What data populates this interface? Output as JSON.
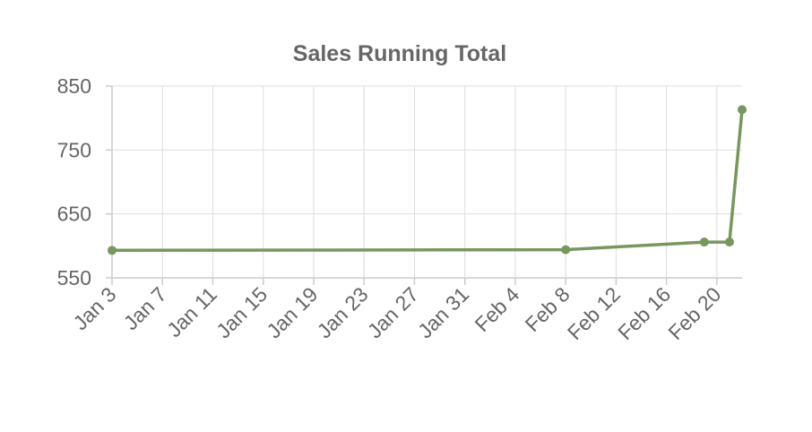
{
  "chart_data": {
    "type": "line",
    "title": "Sales Running Total",
    "xlabel": "",
    "ylabel": "",
    "ylim": [
      550,
      850
    ],
    "y_ticks": [
      550,
      650,
      750,
      850
    ],
    "xlim": [
      "2024-01-03",
      "2024-02-22"
    ],
    "x_ticks": [
      "2024-01-03",
      "2024-01-07",
      "2024-01-11",
      "2024-01-15",
      "2024-01-19",
      "2024-01-23",
      "2024-01-27",
      "2024-01-31",
      "2024-02-04",
      "2024-02-08",
      "2024-02-12",
      "2024-02-16",
      "2024-02-20"
    ],
    "x_tick_labels": [
      "Jan 3",
      "Jan 7",
      "Jan 11",
      "Jan 15",
      "Jan 19",
      "Jan 23",
      "Jan 27",
      "Jan 31",
      "Feb 4",
      "Feb 8",
      "Feb 12",
      "Feb 16",
      "Feb 20"
    ],
    "grid": true,
    "legend": "none",
    "series": [
      {
        "color": "#77975e",
        "points": [
          {
            "x": "2024-01-03",
            "y": 593
          },
          {
            "x": "2024-02-08",
            "y": 594
          },
          {
            "x": "2024-02-19",
            "y": 606
          },
          {
            "x": "2024-02-21",
            "y": 606
          },
          {
            "x": "2024-02-22",
            "y": 813
          }
        ]
      }
    ]
  }
}
